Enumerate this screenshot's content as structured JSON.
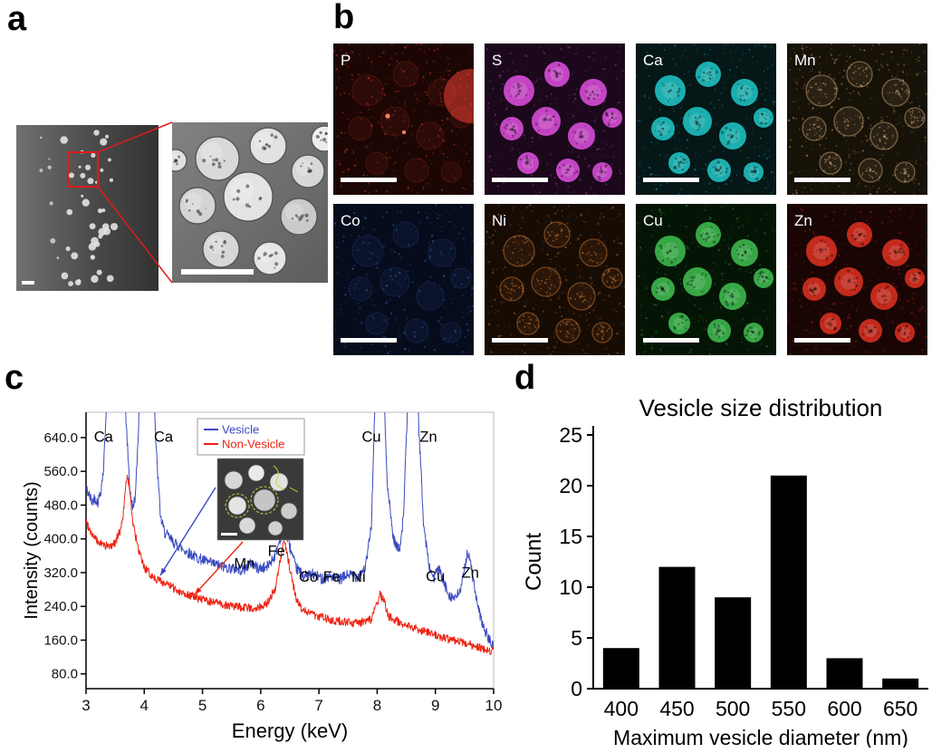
{
  "panels": {
    "a": {
      "label": "a"
    },
    "b": {
      "label": "b",
      "tiles": [
        {
          "label": "P",
          "color": "#ff4433",
          "bg": "#1c0604",
          "style": "sparse",
          "blob": true
        },
        {
          "label": "S",
          "color": "#ee55ee",
          "bg": "#1b081b",
          "style": "bright",
          "blob": false
        },
        {
          "label": "Ca",
          "color": "#22d5d5",
          "bg": "#051717",
          "style": "bright",
          "blob": false
        },
        {
          "label": "Mn",
          "color": "#d2aa7a",
          "bg": "#171208",
          "style": "outline",
          "blob": false
        },
        {
          "label": "Co",
          "color": "#4477dd",
          "bg": "#060c1c",
          "style": "sparse",
          "blob": false
        },
        {
          "label": "Ni",
          "color": "#cc7733",
          "bg": "#170c04",
          "style": "outline",
          "blob": false
        },
        {
          "label": "Cu",
          "color": "#44cc55",
          "bg": "#051505",
          "style": "bright",
          "blob": false
        },
        {
          "label": "Zn",
          "color": "#ee3322",
          "bg": "#1a0505",
          "style": "bright",
          "blob": false
        }
      ]
    },
    "c": {
      "label": "c"
    },
    "d": {
      "label": "d"
    }
  },
  "chart_data": [
    {
      "panel": "c",
      "type": "line",
      "title": "",
      "xlabel": "Energy (keV)",
      "ylabel": "Intensity (counts)",
      "xlim": [
        3,
        10
      ],
      "ylim": [
        45,
        700
      ],
      "xticks": [
        3,
        4,
        5,
        6,
        7,
        8,
        9,
        10
      ],
      "yticks": [
        80,
        160,
        240,
        320,
        400,
        480,
        560,
        640
      ],
      "ytick_decimals": 1,
      "grid": false,
      "legend": {
        "position": "top-inside",
        "entries": [
          {
            "label": "Vesicle",
            "color": "#3a49c0"
          },
          {
            "label": "Non-Vesicle",
            "color": "#ee2211"
          }
        ]
      },
      "annotations": [
        {
          "text": "Ca",
          "x": 3.3,
          "y": 630
        },
        {
          "text": "Ca",
          "x": 4.33,
          "y": 630
        },
        {
          "text": "Mn",
          "x": 5.72,
          "y": 330
        },
        {
          "text": "Fe",
          "x": 6.27,
          "y": 360
        },
        {
          "text": "Co",
          "x": 6.82,
          "y": 298
        },
        {
          "text": "Fe",
          "x": 7.22,
          "y": 298
        },
        {
          "text": "Ni",
          "x": 7.68,
          "y": 298
        },
        {
          "text": "Cu",
          "x": 7.9,
          "y": 630
        },
        {
          "text": "Zn",
          "x": 8.88,
          "y": 630
        },
        {
          "text": "Cu",
          "x": 9.0,
          "y": 300
        },
        {
          "text": "Zn",
          "x": 9.6,
          "y": 308
        }
      ],
      "series": [
        {
          "name": "Vesicle",
          "color": "#3a49c0",
          "noise": 13,
          "anchors": [
            [
              3.0,
              520
            ],
            [
              3.05,
              505
            ],
            [
              3.1,
              488
            ],
            [
              3.15,
              498
            ],
            [
              3.2,
              486
            ],
            [
              3.25,
              512
            ],
            [
              3.3,
              565
            ],
            [
              3.35,
              720
            ],
            [
              3.45,
              950
            ],
            [
              3.6,
              950
            ],
            [
              3.68,
              700
            ],
            [
              3.75,
              520
            ],
            [
              3.8,
              472
            ],
            [
              3.85,
              505
            ],
            [
              3.9,
              660
            ],
            [
              3.95,
              950
            ],
            [
              4.12,
              950
            ],
            [
              4.2,
              620
            ],
            [
              4.28,
              450
            ],
            [
              4.35,
              415
            ],
            [
              4.5,
              392
            ],
            [
              4.7,
              372
            ],
            [
              4.9,
              356
            ],
            [
              5.1,
              344
            ],
            [
              5.3,
              336
            ],
            [
              5.5,
              330
            ],
            [
              5.7,
              326
            ],
            [
              5.85,
              344
            ],
            [
              5.95,
              330
            ],
            [
              6.1,
              332
            ],
            [
              6.25,
              362
            ],
            [
              6.4,
              432
            ],
            [
              6.5,
              382
            ],
            [
              6.6,
              332
            ],
            [
              6.75,
              312
            ],
            [
              6.9,
              316
            ],
            [
              7.05,
              306
            ],
            [
              7.2,
              312
            ],
            [
              7.35,
              302
            ],
            [
              7.5,
              316
            ],
            [
              7.65,
              310
            ],
            [
              7.8,
              332
            ],
            [
              7.9,
              430
            ],
            [
              7.98,
              800
            ],
            [
              8.1,
              800
            ],
            [
              8.18,
              520
            ],
            [
              8.28,
              400
            ],
            [
              8.38,
              372
            ],
            [
              8.45,
              450
            ],
            [
              8.52,
              700
            ],
            [
              8.56,
              950
            ],
            [
              8.66,
              950
            ],
            [
              8.72,
              650
            ],
            [
              8.8,
              430
            ],
            [
              8.9,
              330
            ],
            [
              8.98,
              308
            ],
            [
              9.05,
              332
            ],
            [
              9.15,
              292
            ],
            [
              9.25,
              266
            ],
            [
              9.35,
              258
            ],
            [
              9.45,
              286
            ],
            [
              9.55,
              372
            ],
            [
              9.62,
              330
            ],
            [
              9.72,
              242
            ],
            [
              9.82,
              192
            ],
            [
              9.92,
              162
            ],
            [
              10.0,
              142
            ]
          ]
        },
        {
          "name": "Non-Vesicle",
          "color": "#ee2211",
          "noise": 10,
          "anchors": [
            [
              3.0,
              442
            ],
            [
              3.1,
              412
            ],
            [
              3.2,
              392
            ],
            [
              3.3,
              386
            ],
            [
              3.4,
              381
            ],
            [
              3.5,
              392
            ],
            [
              3.6,
              424
            ],
            [
              3.65,
              474
            ],
            [
              3.7,
              548
            ],
            [
              3.75,
              522
            ],
            [
              3.8,
              442
            ],
            [
              3.9,
              372
            ],
            [
              4.0,
              332
            ],
            [
              4.1,
              316
            ],
            [
              4.2,
              306
            ],
            [
              4.4,
              291
            ],
            [
              4.6,
              276
            ],
            [
              4.8,
              266
            ],
            [
              5.0,
              256
            ],
            [
              5.2,
              249
            ],
            [
              5.4,
              243
            ],
            [
              5.6,
              239
            ],
            [
              5.8,
              236
            ],
            [
              6.0,
              239
            ],
            [
              6.1,
              246
            ],
            [
              6.25,
              282
            ],
            [
              6.4,
              396
            ],
            [
              6.5,
              332
            ],
            [
              6.6,
              262
            ],
            [
              6.7,
              236
            ],
            [
              6.9,
              221
            ],
            [
              7.1,
              213
            ],
            [
              7.3,
              206
            ],
            [
              7.5,
              201
            ],
            [
              7.7,
              201
            ],
            [
              7.9,
              209
            ],
            [
              8.0,
              246
            ],
            [
              8.05,
              270
            ],
            [
              8.12,
              252
            ],
            [
              8.2,
              216
            ],
            [
              8.4,
              201
            ],
            [
              8.6,
              191
            ],
            [
              8.8,
              181
            ],
            [
              9.0,
              173
            ],
            [
              9.2,
              163
            ],
            [
              9.5,
              153
            ],
            [
              9.8,
              141
            ],
            [
              10.0,
              133
            ]
          ]
        }
      ]
    },
    {
      "panel": "d",
      "type": "bar",
      "title": "Vesicle size distribution",
      "xlabel": "Maximum vesicle diameter (nm)",
      "ylabel": "Count",
      "categories": [
        "400",
        "450",
        "500",
        "550",
        "600",
        "650"
      ],
      "values": [
        4,
        12,
        9,
        21,
        3,
        1
      ],
      "ylim": [
        0,
        25
      ],
      "yticks": [
        0,
        5,
        10,
        15,
        20,
        25
      ],
      "grid": false,
      "bar_color": "#000000"
    }
  ]
}
